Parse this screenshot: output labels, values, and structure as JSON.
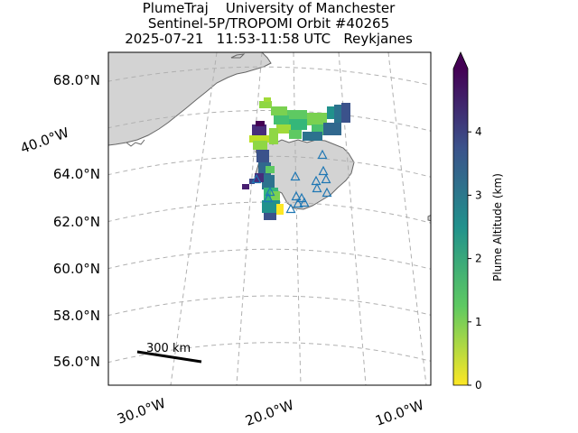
{
  "title": {
    "line1": "PlumeTraj    University of Manchester",
    "line2": "Sentinel-5P/TROPOMI Orbit #40265",
    "line3": "2025-07-21   11:53-11:58 UTC   Reykjanes"
  },
  "map": {
    "latitude_labels": [
      "68.0°N",
      "64.0°N",
      "62.0°N",
      "60.0°N",
      "58.0°N",
      "56.0°N"
    ],
    "longitude_labels": [
      "40.0°W",
      "30.0°W",
      "20.0°W",
      "10.0°W"
    ],
    "gridlines": "dashed grey",
    "land_color": "#d3d3d3",
    "volcano_marker_color": "#1f77b4",
    "volcano_marker_icon": "triangle-outline-icon"
  },
  "scale_bar": {
    "label": "300 km"
  },
  "colorbar": {
    "label": "Plume Altitude (km)",
    "colormap": "viridis_r",
    "range": [
      0,
      5
    ],
    "ticks": [
      "0",
      "1",
      "2",
      "3",
      "4"
    ],
    "extend": "max",
    "colors": [
      "#fde725",
      "#5ec962",
      "#21918c",
      "#3b528b",
      "#440154"
    ]
  }
}
